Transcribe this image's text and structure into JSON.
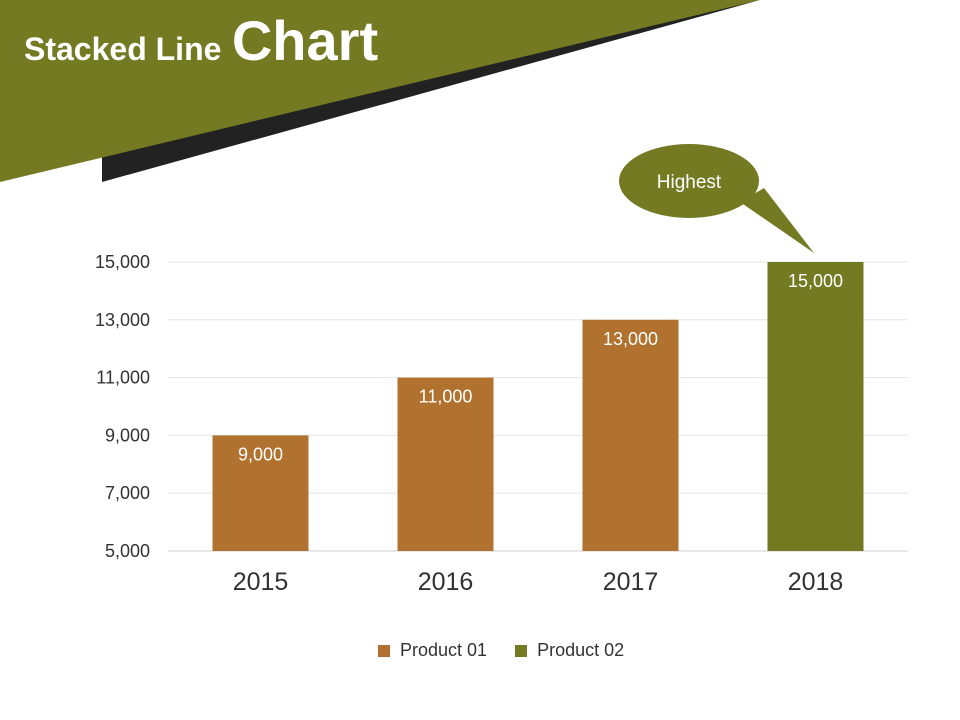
{
  "slide": {
    "title_part1": "Stacked Line",
    "title_part2": "Chart"
  },
  "colors": {
    "olive": "#737A22",
    "bronze": "#B0722E",
    "dark": "#222222",
    "grid": "#e6e6e6",
    "text": "#333333"
  },
  "callout": {
    "text": "Highest"
  },
  "chart_data": {
    "type": "bar",
    "categories": [
      "2015",
      "2016",
      "2017",
      "2018"
    ],
    "series": [
      {
        "name": "Product 01",
        "values": [
          9000,
          11000,
          13000,
          null
        ],
        "color": "#B0722E"
      },
      {
        "name": "Product 02",
        "values": [
          null,
          null,
          null,
          15000
        ],
        "color": "#737A22"
      }
    ],
    "data_labels": [
      "9,000",
      "11,000",
      "13,000",
      "15,000"
    ],
    "y_ticks": [
      "5,000",
      "7,000",
      "9,000",
      "11,000",
      "13,000",
      "15,000"
    ],
    "ylim": [
      5000,
      15000
    ],
    "grid": true,
    "legend_position": "bottom"
  }
}
